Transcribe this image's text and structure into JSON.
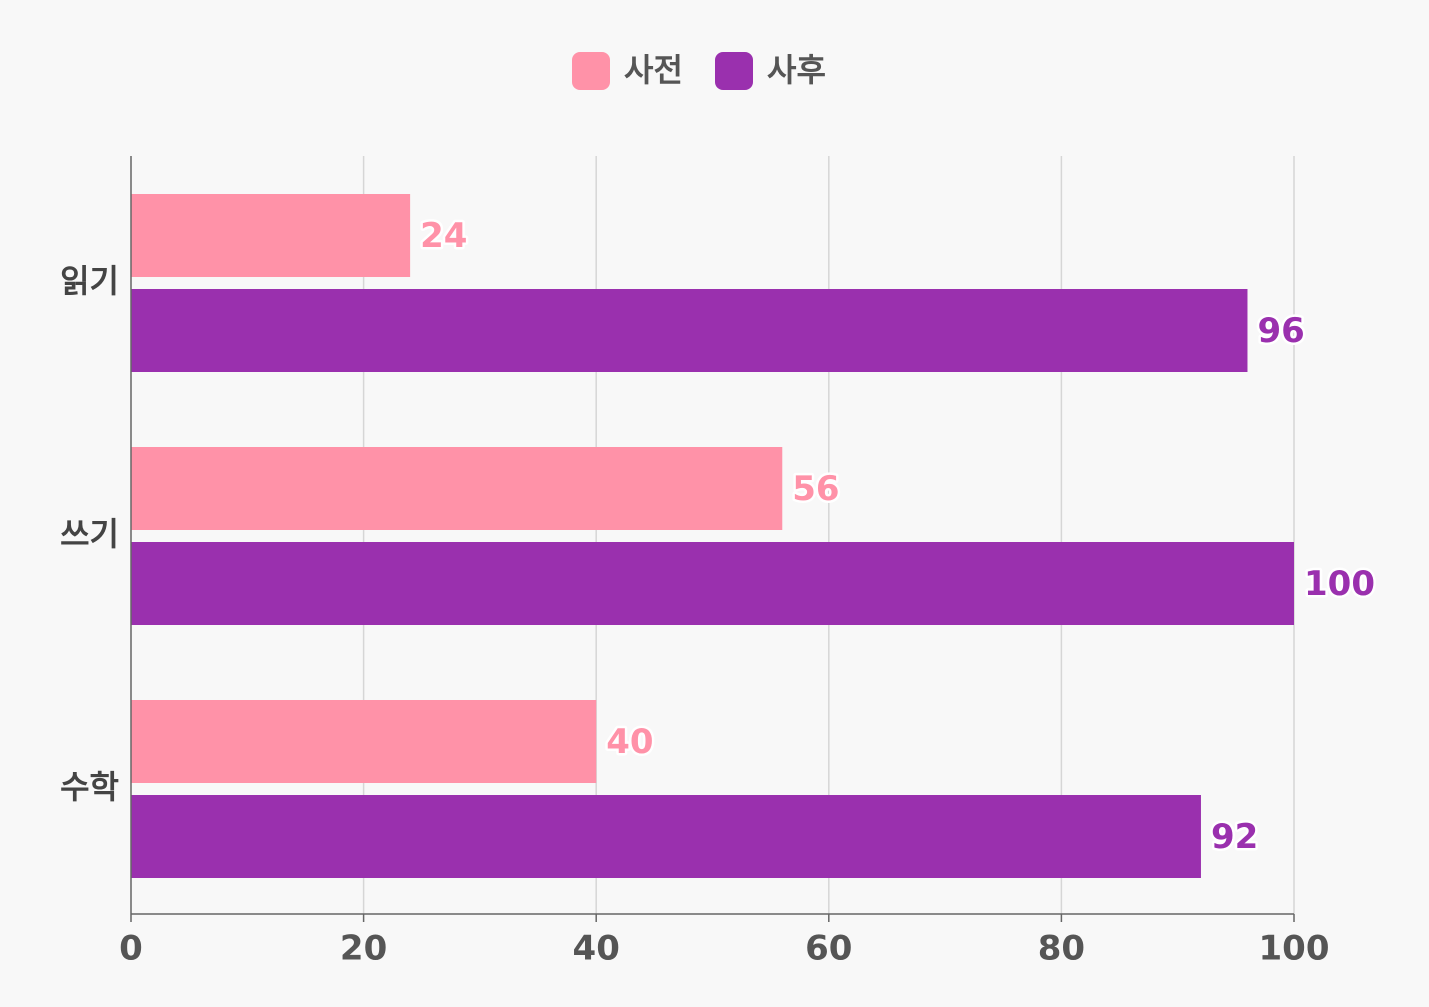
{
  "chart_data": {
    "type": "bar",
    "orientation": "horizontal",
    "categories": [
      "읽기",
      "쓰기",
      "수학"
    ],
    "series": [
      {
        "name": "사전",
        "values": [
          24,
          56,
          40
        ],
        "color": "#ff92a8"
      },
      {
        "name": "사후",
        "values": [
          96,
          100,
          92
        ],
        "color": "#9a30ae"
      }
    ],
    "xlim": [
      0,
      100
    ],
    "xticks": [
      "0",
      "20",
      "40",
      "60",
      "80",
      "100"
    ],
    "grid": true,
    "legend": "top-center",
    "data_labels": true
  }
}
